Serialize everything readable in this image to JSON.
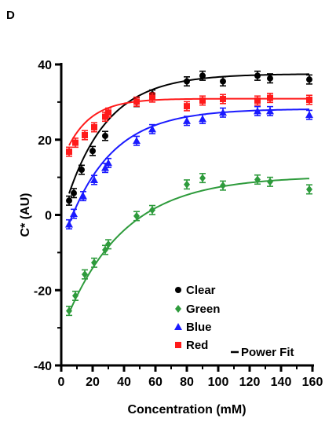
{
  "panel_label": "D",
  "chart_data": {
    "type": "scatter",
    "title": "",
    "xlabel": "Concentration (mM)",
    "ylabel": "C* (AU)",
    "xlim": [
      0,
      160
    ],
    "ylim": [
      -40,
      40
    ],
    "xticks": [
      "0",
      "20",
      "40",
      "60",
      "80",
      "100",
      "120",
      "140",
      "160"
    ],
    "yticks": [
      "-40",
      "-20",
      "0",
      "20",
      "40"
    ],
    "grid": false,
    "legend_position": "bottom-right",
    "fit_label": "Power Fit",
    "series": [
      {
        "name": "Clear",
        "color": "#000000",
        "marker": "circle",
        "x": [
          5,
          8,
          13,
          20,
          28,
          48,
          58,
          80,
          90,
          103,
          125,
          133,
          158
        ],
        "y": [
          3.8,
          5.8,
          12,
          17,
          21,
          30,
          32,
          35.5,
          37,
          35.5,
          37,
          36.3,
          36
        ],
        "err": [
          1.2,
          1.2,
          1.2,
          1.2,
          1.2,
          1.2,
          1.2,
          1.2,
          1.2,
          1.2,
          1.2,
          1.2,
          1.2
        ],
        "fit": {
          "a": 37.5,
          "b": 38.5,
          "k": 0.0382
        }
      },
      {
        "name": "Green",
        "color": "#2e9b3c",
        "marker": "diamond",
        "x": [
          5,
          9,
          15,
          21,
          28,
          30,
          48,
          58,
          80,
          90,
          103,
          125,
          133,
          158
        ],
        "y": [
          -25.5,
          -21.5,
          -15.8,
          -12.7,
          -9.3,
          -7.8,
          -0.3,
          1.3,
          8.1,
          9.8,
          7.8,
          9.4,
          8.8,
          6.8
        ],
        "err": [
          1.2,
          1.2,
          1.2,
          1.2,
          1.2,
          1.2,
          1.2,
          1.2,
          1.2,
          1.2,
          1.2,
          1.2,
          1.2,
          1.2
        ],
        "fit": {
          "a": 10.3,
          "b": 41.5,
          "k": 0.0265
        }
      },
      {
        "name": "Blue",
        "color": "#1a1aff",
        "marker": "triangle",
        "x": [
          5,
          8,
          14,
          21,
          28,
          30,
          48,
          58,
          80,
          90,
          103,
          125,
          133,
          158
        ],
        "y": [
          -2.5,
          0.3,
          5,
          9.3,
          12.5,
          13.8,
          19.7,
          22.8,
          25,
          25.5,
          27.2,
          27.6,
          27.6,
          26.6
        ],
        "err": [
          1.2,
          1.2,
          1.2,
          1.2,
          1.2,
          1.2,
          1.2,
          1.2,
          1.2,
          1.2,
          1.2,
          1.2,
          1.2,
          1.2
        ],
        "fit": {
          "a": 28.2,
          "b": 36.5,
          "k": 0.0355
        }
      },
      {
        "name": "Red",
        "color": "#ff1a1a",
        "marker": "square",
        "x": [
          5,
          9,
          15,
          21,
          28,
          30,
          48,
          58,
          80,
          90,
          103,
          125,
          133,
          158
        ],
        "y": [
          16.8,
          19.2,
          21.2,
          23.3,
          26.1,
          27.2,
          30.1,
          31.2,
          28.9,
          30.4,
          30.8,
          30.4,
          31.1,
          30.6
        ],
        "err": [
          1.2,
          1.2,
          1.2,
          1.2,
          1.2,
          1.2,
          1.2,
          1.2,
          1.2,
          1.2,
          1.2,
          1.2,
          1.2,
          1.2
        ],
        "fit": {
          "a": 30.9,
          "b": 17.2,
          "k": 0.065
        }
      }
    ]
  }
}
